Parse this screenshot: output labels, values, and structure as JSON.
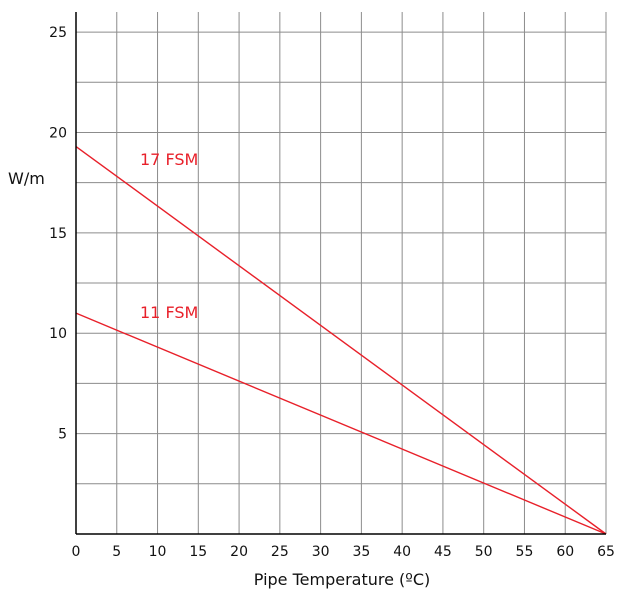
{
  "chart_data": {
    "type": "line",
    "title": "",
    "xlabel": "Pipe Temperature (ºC)",
    "ylabel": "W/m",
    "xlim": [
      0,
      65
    ],
    "ylim": [
      0,
      25
    ],
    "grid": true,
    "x_ticks": [
      "0",
      "5",
      "10",
      "15",
      "20",
      "25",
      "30",
      "35",
      "40",
      "45",
      "50",
      "55",
      "60",
      "65"
    ],
    "y_ticks": [
      {
        "value": 5,
        "label": "5"
      },
      {
        "value": 10,
        "label": "10"
      },
      {
        "value": 15,
        "label": "15"
      },
      {
        "value": 20,
        "label": "20"
      },
      {
        "value": 25,
        "label": "25"
      }
    ],
    "series": [
      {
        "name": "17 FSM",
        "color": "#e8202a",
        "x": [
          0,
          65
        ],
        "y": [
          19.3,
          0
        ]
      },
      {
        "name": "11 FSM",
        "color": "#e8202a",
        "x": [
          0,
          65
        ],
        "y": [
          11.0,
          0
        ]
      }
    ]
  }
}
